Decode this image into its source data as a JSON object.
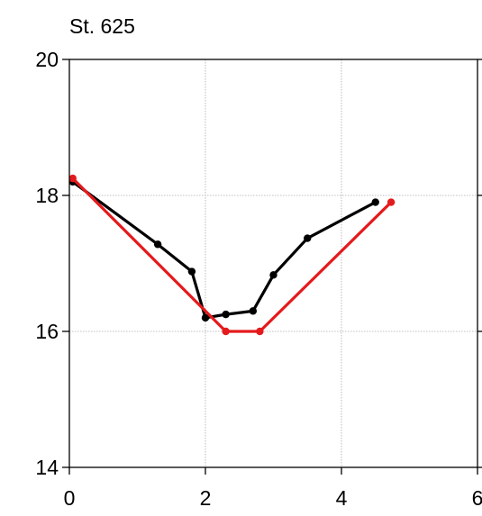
{
  "chart_data": {
    "type": "line",
    "title": "St. 625",
    "xlabel": "",
    "ylabel": "",
    "xlim": [
      0,
      6
    ],
    "ylim": [
      14,
      20
    ],
    "xticks": [
      0,
      2,
      4,
      6
    ],
    "yticks": [
      14,
      16,
      18,
      20
    ],
    "x_tick_labels": [
      "0",
      "2",
      "4",
      "6"
    ],
    "y_tick_labels": [
      "14",
      "16",
      "18",
      "20"
    ],
    "grid": true,
    "legend": "none",
    "series": [
      {
        "color": "#000000",
        "x": [
          0.05,
          1.3,
          1.8,
          2.0,
          2.3,
          2.7,
          3.0,
          3.5,
          4.5
        ],
        "y": [
          18.2,
          17.28,
          16.88,
          16.2,
          16.25,
          16.3,
          16.83,
          17.37,
          17.9
        ]
      },
      {
        "color": "#e41a1c",
        "x": [
          0.05,
          2.3,
          2.8,
          4.73
        ],
        "y": [
          18.25,
          16.0,
          16.0,
          17.9
        ]
      }
    ]
  }
}
